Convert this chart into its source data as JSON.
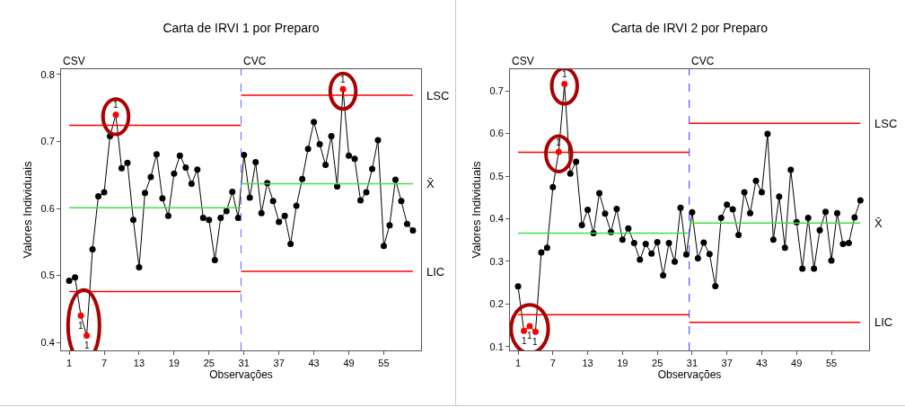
{
  "chart_data": [
    {
      "type": "line",
      "title": "Carta de IRVI 1 por Preparo",
      "xlabel": "Observações",
      "ylabel": "Valores Individuais",
      "xlim": [
        -0.4,
        61.4
      ],
      "xticks": [
        1,
        7,
        13,
        19,
        25,
        31,
        37,
        43,
        49,
        55
      ],
      "ylim": [
        0.388,
        0.808
      ],
      "yticks": [
        0.4,
        0.5,
        0.6,
        0.7,
        0.8
      ],
      "grid": false,
      "legend": false,
      "marker": "circle",
      "line_style": "solid",
      "series": [
        {
          "color": "#000000",
          "x": [
            1,
            2,
            3,
            4,
            5,
            6,
            7,
            8,
            9,
            10,
            11,
            12,
            13,
            14,
            15,
            16,
            17,
            18,
            19,
            20,
            21,
            22,
            23,
            24,
            25,
            26,
            27,
            28,
            29,
            30,
            31,
            32,
            33,
            34,
            35,
            36,
            37,
            38,
            39,
            40,
            41,
            42,
            43,
            44,
            45,
            46,
            47,
            48,
            49,
            50,
            51,
            52,
            53,
            54,
            55,
            56,
            57,
            58,
            59,
            60
          ],
          "values": [
            0.492,
            0.497,
            0.44,
            0.41,
            0.539,
            0.618,
            0.624,
            0.708,
            0.74,
            0.66,
            0.668,
            0.583,
            0.512,
            0.623,
            0.647,
            0.681,
            0.615,
            0.589,
            0.652,
            0.679,
            0.661,
            0.637,
            0.658,
            0.586,
            0.583,
            0.523,
            0.586,
            0.596,
            0.625,
            0.586,
            0.68,
            0.616,
            0.669,
            0.593,
            0.638,
            0.611,
            0.58,
            0.589,
            0.547,
            0.604,
            0.644,
            0.689,
            0.729,
            0.696,
            0.665,
            0.708,
            0.633,
            0.778,
            0.679,
            0.674,
            0.612,
            0.624,
            0.659,
            0.702,
            0.544,
            0.575,
            0.643,
            0.611,
            0.577,
            0.567
          ],
          "colors": [
            "#000000",
            "#000000",
            "#ff0000",
            "#ff0000",
            "#000000",
            "#000000",
            "#000000",
            "#000000",
            "#ff0000",
            "#000000",
            "#000000",
            "#000000",
            "#000000",
            "#000000",
            "#000000",
            "#000000",
            "#000000",
            "#000000",
            "#000000",
            "#000000",
            "#000000",
            "#000000",
            "#000000",
            "#000000",
            "#000000",
            "#000000",
            "#000000",
            "#000000",
            "#000000",
            "#000000",
            "#000000",
            "#000000",
            "#000000",
            "#000000",
            "#000000",
            "#000000",
            "#000000",
            "#000000",
            "#000000",
            "#000000",
            "#000000",
            "#000000",
            "#000000",
            "#000000",
            "#000000",
            "#000000",
            "#000000",
            "#ff0000",
            "#000000",
            "#000000",
            "#000000",
            "#000000",
            "#000000",
            "#000000",
            "#000000",
            "#000000",
            "#000000",
            "#000000",
            "#000000",
            "#000000"
          ]
        },
        {
          "type": "line",
          "marker": "none",
          "color": "#ff0000",
          "x": [
            1,
            30.5
          ],
          "values": [
            0.724,
            0.724
          ]
        },
        {
          "type": "line",
          "marker": "none",
          "color": "#44dd44",
          "x": [
            1,
            30.5
          ],
          "values": [
            0.601,
            0.601
          ]
        },
        {
          "type": "line",
          "marker": "none",
          "color": "#ff0000",
          "x": [
            1,
            30.5
          ],
          "values": [
            0.476,
            0.476
          ]
        },
        {
          "type": "line",
          "marker": "none",
          "name": "LSC",
          "color": "#ff0000",
          "x": [
            30.5,
            60
          ],
          "values": [
            0.769,
            0.769
          ]
        },
        {
          "type": "line",
          "marker": "none",
          "name": "X̄",
          "color": "#44dd44",
          "x": [
            30.5,
            60
          ],
          "values": [
            0.637,
            0.637
          ]
        },
        {
          "type": "line",
          "marker": "none",
          "name": "LIC",
          "color": "#ff0000",
          "x": [
            30.5,
            60
          ],
          "values": [
            0.506,
            0.506
          ]
        }
      ],
      "ref_lines": [
        {
          "axis": "x",
          "value": 30.5,
          "color": "#6666ff",
          "line_style": "dashed"
        }
      ],
      "annotations": [
        "CSV",
        "CVC",
        {
          "text": "1",
          "x": 3,
          "y": 0.44
        },
        {
          "text": "1",
          "x": 4,
          "y": 0.41
        },
        {
          "text": "1",
          "x": 9,
          "y": 0.74
        },
        {
          "text": "1",
          "x": 48,
          "y": 0.778
        }
      ]
    },
    {
      "type": "line",
      "title": "Carta de IRVI 2 por Preparo",
      "xlabel": "Observações",
      "ylabel": "Valores Individuais",
      "xlim": [
        -0.4,
        61.5
      ],
      "xticks": [
        1,
        7,
        13,
        19,
        25,
        31,
        37,
        43,
        49,
        55
      ],
      "ylim": [
        0.091,
        0.751
      ],
      "yticks": [
        0.1,
        0.2,
        0.3,
        0.4,
        0.5,
        0.6,
        0.7
      ],
      "grid": false,
      "legend": false,
      "marker": "circle",
      "line_style": "solid",
      "series": [
        {
          "color": "#000000",
          "x": [
            1,
            2,
            3,
            4,
            5,
            6,
            7,
            8,
            9,
            10,
            11,
            12,
            13,
            14,
            15,
            16,
            17,
            18,
            19,
            20,
            21,
            22,
            23,
            24,
            25,
            26,
            27,
            28,
            29,
            30,
            31,
            32,
            33,
            34,
            35,
            36,
            37,
            38,
            39,
            40,
            41,
            42,
            43,
            44,
            45,
            46,
            47,
            48,
            49,
            50,
            51,
            52,
            53,
            54,
            55,
            56,
            57,
            58,
            59,
            60
          ],
          "values": [
            0.241,
            0.137,
            0.148,
            0.135,
            0.321,
            0.332,
            0.474,
            0.557,
            0.716,
            0.506,
            0.534,
            0.385,
            0.421,
            0.366,
            0.46,
            0.412,
            0.369,
            0.423,
            0.351,
            0.377,
            0.343,
            0.304,
            0.341,
            0.318,
            0.345,
            0.267,
            0.343,
            0.299,
            0.426,
            0.316,
            0.415,
            0.307,
            0.344,
            0.317,
            0.242,
            0.402,
            0.433,
            0.422,
            0.362,
            0.462,
            0.413,
            0.489,
            0.462,
            0.599,
            0.351,
            0.452,
            0.332,
            0.515,
            0.392,
            0.283,
            0.402,
            0.283,
            0.373,
            0.416,
            0.302,
            0.413,
            0.341,
            0.343,
            0.403,
            0.443
          ],
          "colors": [
            "#000000",
            "#ff0000",
            "#ff0000",
            "#ff0000",
            "#000000",
            "#000000",
            "#000000",
            "#ff0000",
            "#ff0000",
            "#000000",
            "#000000",
            "#000000",
            "#000000",
            "#000000",
            "#000000",
            "#000000",
            "#000000",
            "#000000",
            "#000000",
            "#000000",
            "#000000",
            "#000000",
            "#000000",
            "#000000",
            "#000000",
            "#000000",
            "#000000",
            "#000000",
            "#000000",
            "#000000",
            "#000000",
            "#000000",
            "#000000",
            "#000000",
            "#000000",
            "#000000",
            "#000000",
            "#000000",
            "#000000",
            "#000000",
            "#000000",
            "#000000",
            "#000000",
            "#000000",
            "#000000",
            "#000000",
            "#000000",
            "#000000",
            "#000000",
            "#000000",
            "#000000",
            "#000000",
            "#000000",
            "#000000",
            "#000000",
            "#000000",
            "#000000",
            "#000000",
            "#000000",
            "#000000"
          ]
        },
        {
          "type": "line",
          "marker": "none",
          "color": "#ff0000",
          "x": [
            1,
            30.5
          ],
          "values": [
            0.556,
            0.556
          ]
        },
        {
          "type": "line",
          "marker": "none",
          "color": "#44dd44",
          "x": [
            1,
            30.5
          ],
          "values": [
            0.366,
            0.366
          ]
        },
        {
          "type": "line",
          "marker": "none",
          "color": "#ff0000",
          "x": [
            1,
            30.5
          ],
          "values": [
            0.175,
            0.175
          ]
        },
        {
          "type": "line",
          "marker": "none",
          "name": "LSC",
          "color": "#ff0000",
          "x": [
            30.5,
            60
          ],
          "values": [
            0.624,
            0.624
          ]
        },
        {
          "type": "line",
          "marker": "none",
          "name": "X̄",
          "color": "#44dd44",
          "x": [
            30.5,
            60
          ],
          "values": [
            0.39,
            0.39
          ]
        },
        {
          "type": "line",
          "marker": "none",
          "name": "LIC",
          "color": "#ff0000",
          "x": [
            30.5,
            60
          ],
          "values": [
            0.157,
            0.157
          ]
        }
      ],
      "ref_lines": [
        {
          "axis": "x",
          "value": 30.5,
          "color": "#3333ff",
          "line_style": "dashed"
        }
      ],
      "annotations": [
        "CSV",
        "CVC",
        {
          "text": "1",
          "x": 2,
          "y": 0.137
        },
        {
          "text": "1",
          "x": 3,
          "y": 0.148
        },
        {
          "text": "1",
          "x": 4,
          "y": 0.135
        },
        {
          "text": "1",
          "x": 8,
          "y": 0.557
        },
        {
          "text": "1",
          "x": 9,
          "y": 0.716
        }
      ]
    }
  ]
}
